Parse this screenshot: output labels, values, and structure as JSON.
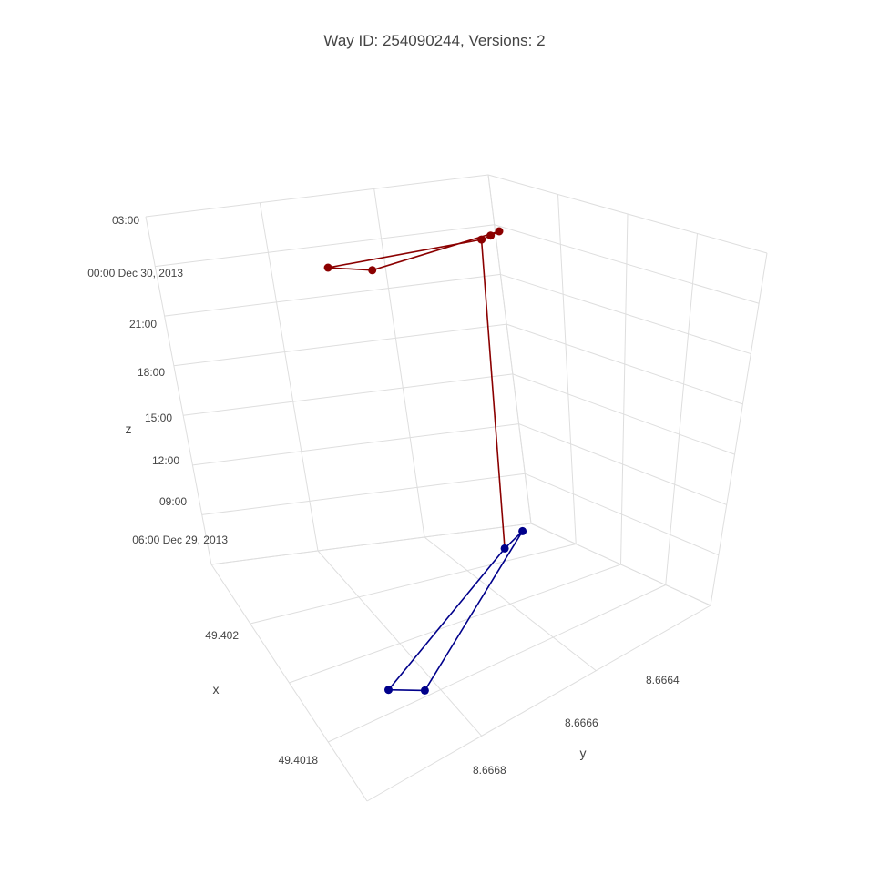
{
  "chart_data": {
    "type": "scatter3d",
    "title": "Way ID: 254090244, Versions: 2",
    "axes": {
      "x": {
        "label": "x",
        "ticks": [
          "49.402",
          "49.4018"
        ]
      },
      "y": {
        "label": "y",
        "ticks": [
          "8.6664",
          "8.6666",
          "8.6668"
        ]
      },
      "z": {
        "label": "z",
        "ticks": [
          "06:00 Dec 29, 2013",
          "09:00",
          "12:00",
          "15:00",
          "18:00",
          "21:00",
          "00:00 Dec 30, 2013",
          "03:00"
        ]
      }
    },
    "grid": true,
    "series": [
      {
        "color": "#00008b",
        "points": [
          {
            "x": 49.4018,
            "y": 8.66678,
            "z": "2013-12-29 06:00"
          },
          {
            "x": 49.40176,
            "y": 8.66682,
            "z": "2013-12-29 06:00"
          },
          {
            "x": 49.40205,
            "y": 8.66658,
            "z": "2013-12-29 06:00"
          },
          {
            "x": 49.40202,
            "y": 8.66655,
            "z": "2013-12-29 06:00"
          }
        ]
      },
      {
        "color": "#8b0000",
        "points": [
          {
            "x": 49.4018,
            "y": 8.66678,
            "z": "2013-12-30 01:30"
          },
          {
            "x": 49.40178,
            "y": 8.6668,
            "z": "2013-12-30 01:30"
          },
          {
            "x": 49.40176,
            "y": 8.66682,
            "z": "2013-12-30 01:30"
          },
          {
            "x": 49.40205,
            "y": 8.66658,
            "z": "2013-12-30 01:30"
          },
          {
            "x": 49.40202,
            "y": 8.66655,
            "z": "2013-12-30 01:30"
          }
        ]
      }
    ]
  }
}
